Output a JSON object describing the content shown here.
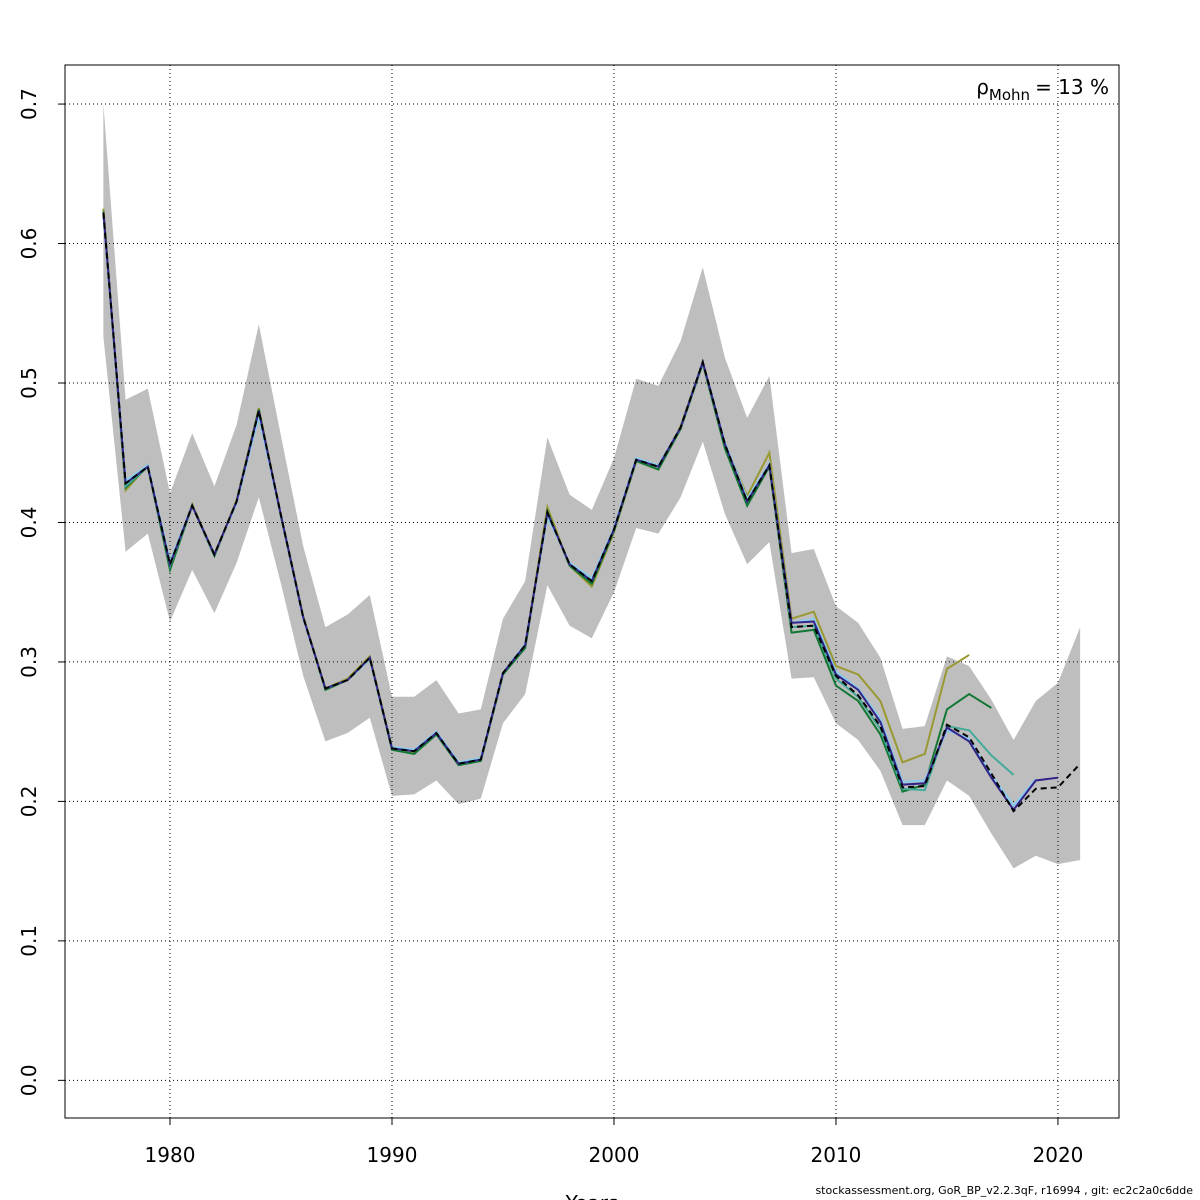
{
  "chart_data": {
    "type": "line",
    "x_label": "Years",
    "annotation": {
      "symbol": "ρ",
      "subscript": "Mohn",
      "text": "= 13 %"
    },
    "footer": "stockassessment.org, GoR_BP_v2.2.3qF, r16994 , git: ec2c2a0c6dde",
    "x": [
      1977,
      1978,
      1979,
      1980,
      1981,
      1982,
      1983,
      1984,
      1985,
      1986,
      1987,
      1988,
      1989,
      1990,
      1991,
      1992,
      1993,
      1994,
      1995,
      1996,
      1997,
      1998,
      1999,
      2000,
      2001,
      2002,
      2003,
      2004,
      2005,
      2006,
      2007,
      2008,
      2009,
      2010,
      2011,
      2012,
      2013,
      2014,
      2015,
      2016,
      2017,
      2018,
      2019,
      2020,
      2021
    ],
    "band": {
      "color": "#bebebe",
      "lower": [
        0.533,
        0.379,
        0.392,
        0.329,
        0.366,
        0.335,
        0.371,
        0.418,
        0.356,
        0.29,
        0.243,
        0.249,
        0.26,
        0.204,
        0.205,
        0.215,
        0.198,
        0.202,
        0.256,
        0.277,
        0.355,
        0.326,
        0.317,
        0.35,
        0.396,
        0.392,
        0.418,
        0.458,
        0.406,
        0.37,
        0.386,
        0.288,
        0.289,
        0.256,
        0.244,
        0.222,
        0.183,
        0.183,
        0.215,
        0.204,
        0.177,
        0.152,
        0.161,
        0.155,
        0.158
      ],
      "upper": [
        0.7,
        0.488,
        0.496,
        0.421,
        0.464,
        0.426,
        0.47,
        0.542,
        0.462,
        0.383,
        0.325,
        0.334,
        0.348,
        0.275,
        0.275,
        0.287,
        0.263,
        0.266,
        0.331,
        0.358,
        0.461,
        0.42,
        0.409,
        0.446,
        0.503,
        0.498,
        0.53,
        0.583,
        0.518,
        0.475,
        0.505,
        0.378,
        0.381,
        0.34,
        0.328,
        0.303,
        0.252,
        0.254,
        0.304,
        0.297,
        0.273,
        0.244,
        0.272,
        0.285,
        0.325
      ]
    },
    "series": [
      {
        "color": "#999933",
        "values": [
          0.625,
          0.423,
          0.441,
          0.368,
          0.413,
          0.377,
          0.416,
          0.482,
          0.405,
          0.333,
          0.281,
          0.288,
          0.304,
          0.239,
          0.235,
          0.249,
          0.227,
          0.23,
          0.292,
          0.311,
          0.411,
          0.369,
          0.354,
          0.393,
          0.444,
          0.438,
          0.469,
          0.515,
          0.456,
          0.419,
          0.45,
          0.331,
          0.336,
          0.297,
          0.291,
          0.272,
          0.228,
          0.234,
          0.295,
          0.305,
          null,
          null,
          null,
          null,
          null
        ]
      },
      {
        "color": "#117733",
        "values": [
          0.623,
          0.425,
          0.44,
          0.366,
          0.412,
          0.376,
          0.415,
          0.481,
          0.404,
          0.332,
          0.28,
          0.287,
          0.303,
          0.237,
          0.234,
          0.248,
          0.226,
          0.229,
          0.291,
          0.31,
          0.408,
          0.369,
          0.356,
          0.394,
          0.444,
          0.438,
          0.467,
          0.514,
          0.453,
          0.412,
          0.44,
          0.321,
          0.323,
          0.283,
          0.272,
          0.248,
          0.207,
          0.212,
          0.266,
          0.277,
          0.267,
          null,
          null,
          null,
          null
        ]
      },
      {
        "color": "#44aa99",
        "values": [
          0.621,
          0.426,
          0.44,
          0.369,
          0.412,
          0.377,
          0.415,
          0.479,
          0.405,
          0.332,
          0.281,
          0.287,
          0.302,
          0.238,
          0.236,
          0.249,
          0.227,
          0.23,
          0.292,
          0.312,
          0.406,
          0.37,
          0.358,
          0.395,
          0.445,
          0.44,
          0.468,
          0.515,
          0.456,
          0.415,
          0.441,
          0.325,
          0.326,
          0.288,
          0.275,
          0.252,
          0.209,
          0.208,
          0.254,
          0.251,
          0.233,
          0.219,
          null,
          null,
          null
        ]
      },
      {
        "color": "#88ccee",
        "values": [
          0.62,
          0.43,
          0.441,
          0.372,
          0.412,
          0.377,
          0.414,
          0.476,
          0.405,
          0.331,
          0.281,
          0.287,
          0.302,
          0.239,
          0.237,
          0.25,
          0.228,
          0.231,
          0.292,
          0.313,
          0.404,
          0.371,
          0.36,
          0.396,
          0.446,
          0.441,
          0.468,
          0.515,
          0.457,
          0.417,
          0.442,
          0.328,
          0.331,
          0.293,
          0.281,
          0.259,
          0.214,
          0.215,
          0.251,
          0.245,
          0.219,
          0.197,
          0.216,
          null,
          null
        ]
      },
      {
        "color": "#332288",
        "values": [
          0.622,
          0.428,
          0.44,
          0.37,
          0.412,
          0.377,
          0.415,
          0.48,
          0.405,
          0.332,
          0.281,
          0.287,
          0.303,
          0.238,
          0.236,
          0.249,
          0.227,
          0.23,
          0.292,
          0.312,
          0.407,
          0.37,
          0.358,
          0.395,
          0.445,
          0.44,
          0.468,
          0.515,
          0.456,
          0.415,
          0.441,
          0.328,
          0.329,
          0.291,
          0.28,
          0.257,
          0.212,
          0.213,
          0.253,
          0.243,
          0.217,
          0.194,
          0.215,
          0.217,
          null
        ]
      },
      {
        "color": "#000000",
        "dashed": true,
        "values": [
          0.622,
          0.428,
          0.44,
          0.37,
          0.412,
          0.377,
          0.415,
          0.48,
          0.405,
          0.332,
          0.281,
          0.287,
          0.303,
          0.238,
          0.236,
          0.249,
          0.227,
          0.23,
          0.292,
          0.312,
          0.407,
          0.37,
          0.358,
          0.395,
          0.445,
          0.44,
          0.468,
          0.515,
          0.456,
          0.415,
          0.441,
          0.325,
          0.326,
          0.29,
          0.276,
          0.254,
          0.21,
          0.211,
          0.255,
          0.246,
          0.22,
          0.193,
          0.209,
          0.21,
          0.227
        ]
      }
    ],
    "xlim": [
      1975.27,
      2022.75
    ],
    "ylim": [
      -0.027,
      0.728
    ],
    "xticks": [
      1980,
      1990,
      2000,
      2010,
      2020
    ],
    "yticks": [
      {
        "value": 0,
        "label": "0.0"
      },
      0.1,
      0.2,
      0.3,
      0.4,
      0.5,
      0.6,
      0.7
    ],
    "grid": true
  }
}
